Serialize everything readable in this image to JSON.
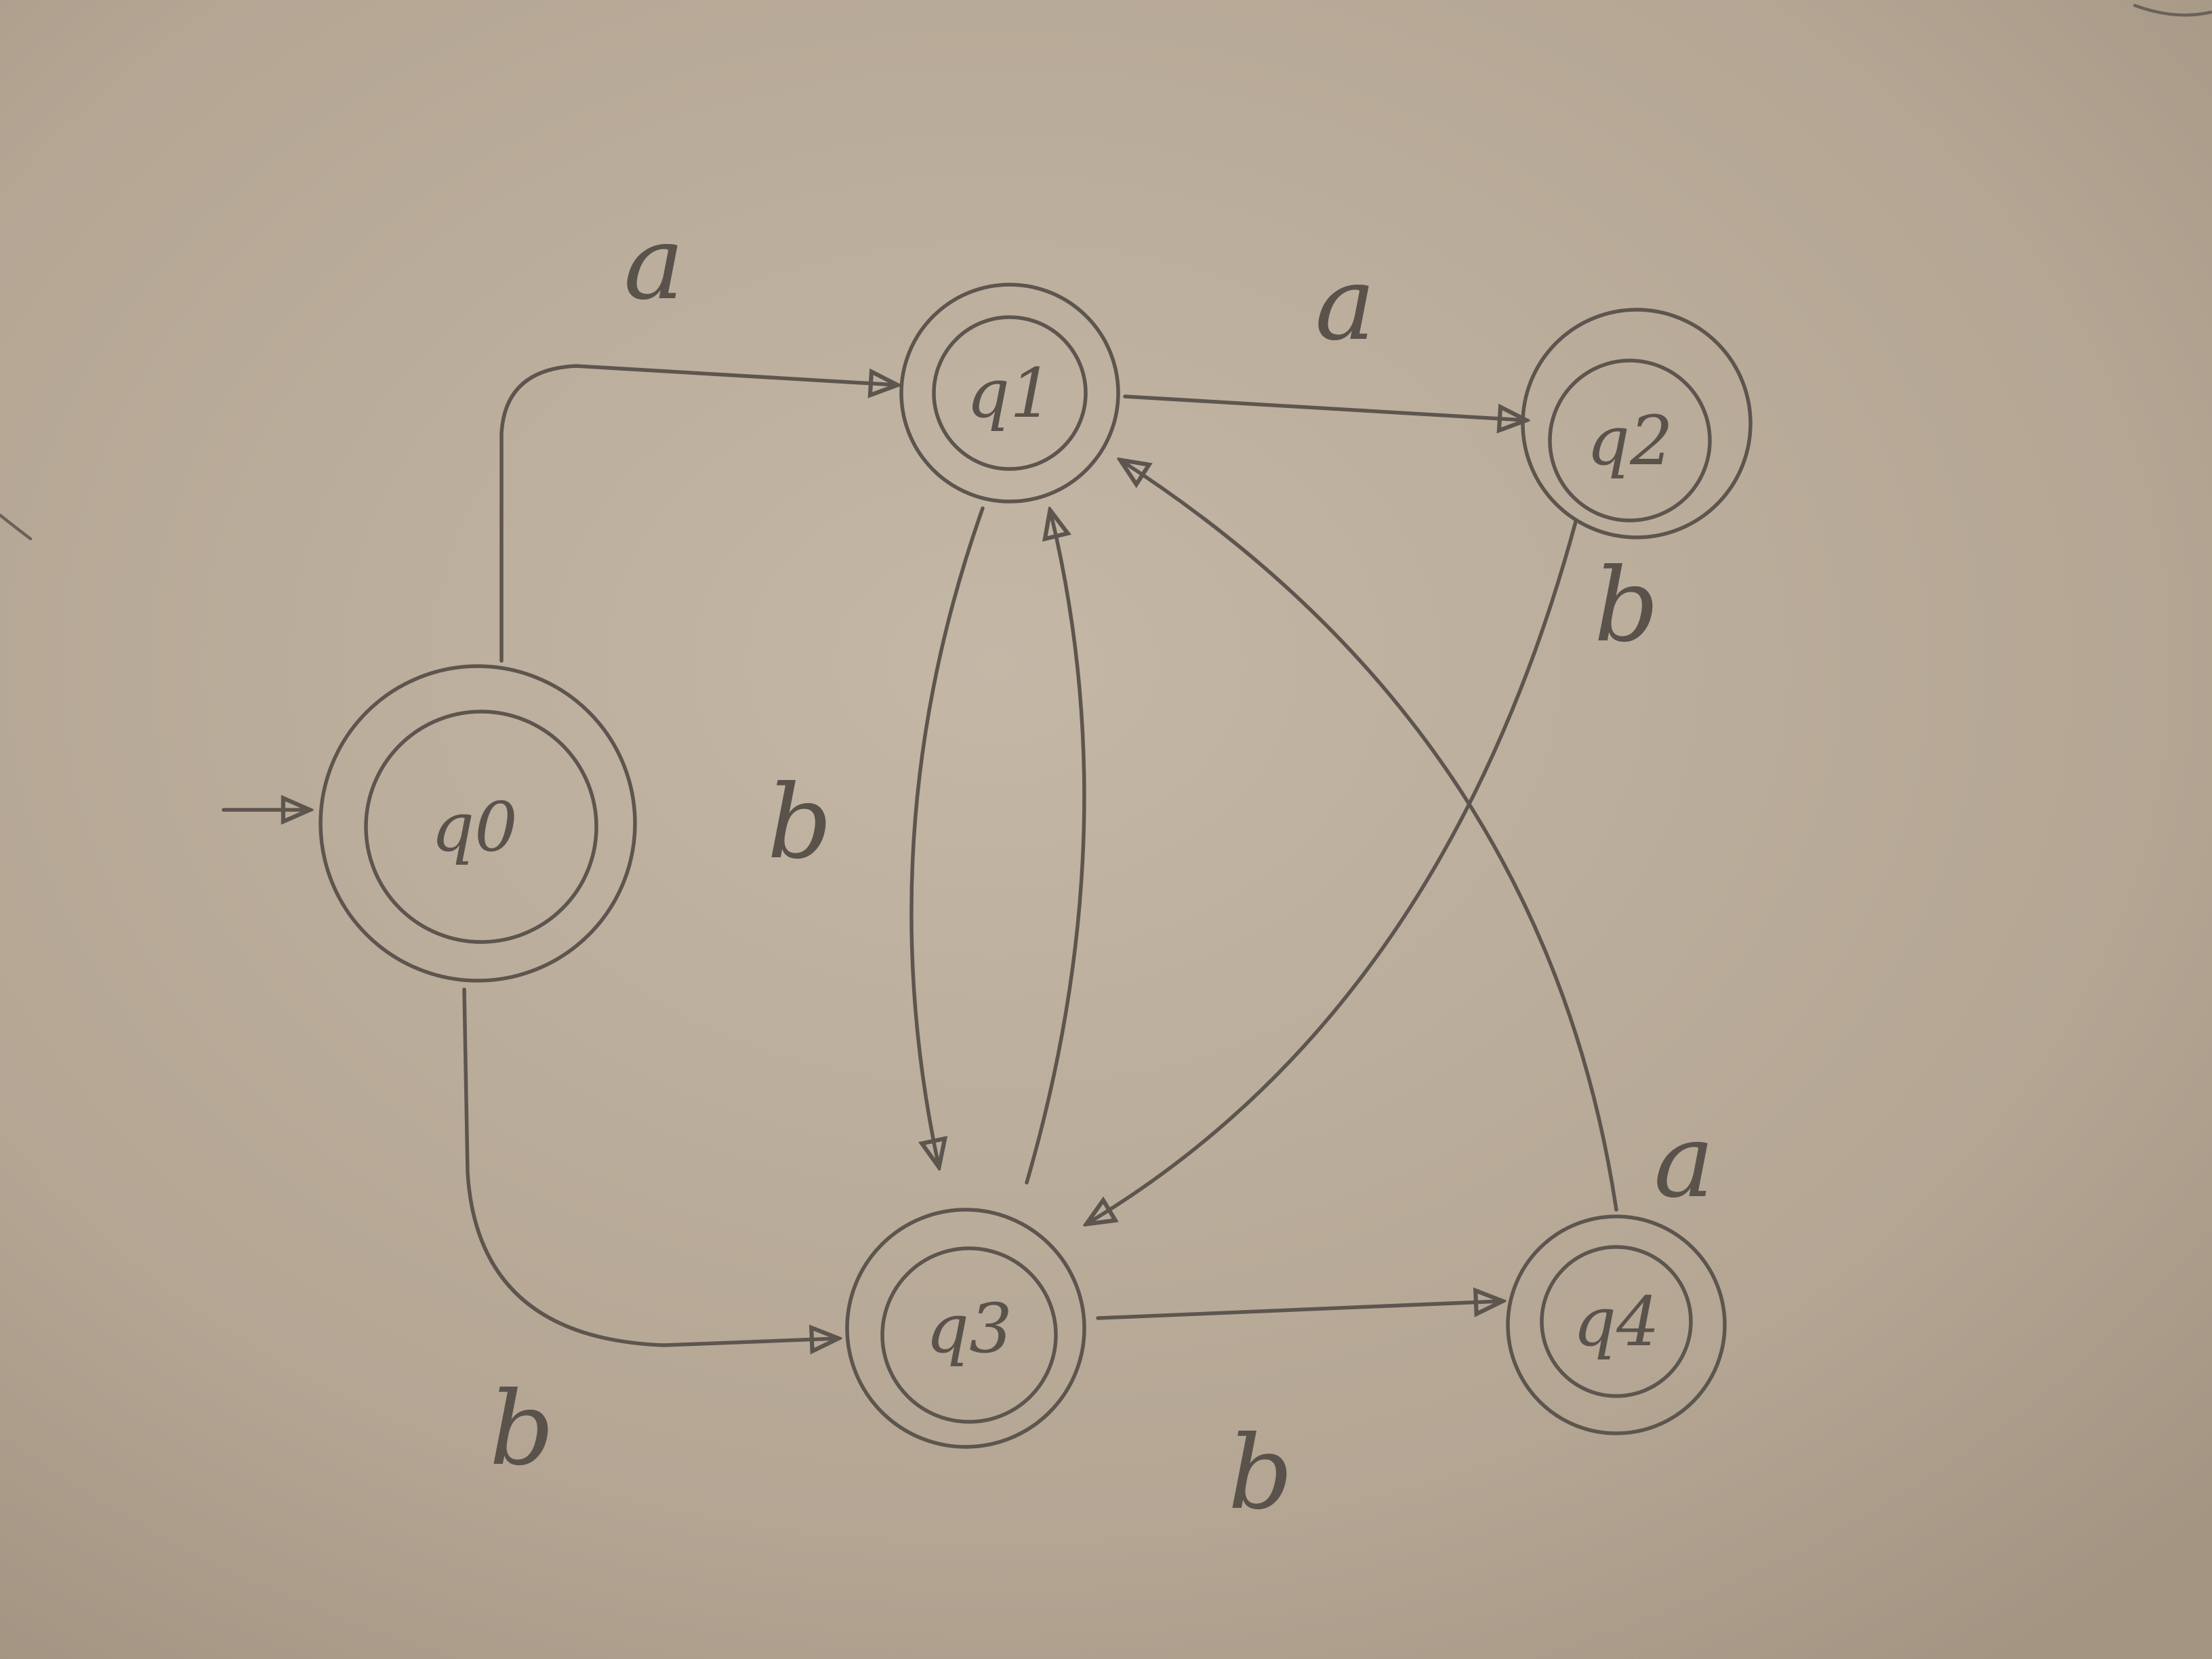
{
  "diagram": {
    "type": "finite-automaton",
    "start_state": "q0",
    "states": [
      {
        "id": "q0",
        "label": "q0",
        "accepting": true
      },
      {
        "id": "q1",
        "label": "q1",
        "accepting": true
      },
      {
        "id": "q2",
        "label": "q2",
        "accepting": true
      },
      {
        "id": "q3",
        "label": "q3",
        "accepting": true
      },
      {
        "id": "q4",
        "label": "q4",
        "accepting": true
      }
    ],
    "transitions": [
      {
        "from": "q0",
        "to": "q1",
        "label": "a"
      },
      {
        "from": "q0",
        "to": "q3",
        "label": "b"
      },
      {
        "from": "q1",
        "to": "q2",
        "label": "a"
      },
      {
        "from": "q1",
        "to": "q3",
        "label": "b"
      },
      {
        "from": "q3",
        "to": "q1",
        "label": ""
      },
      {
        "from": "q2",
        "to": "q3",
        "label": "b"
      },
      {
        "from": "q3",
        "to": "q4",
        "label": "b"
      },
      {
        "from": "q4",
        "to": "q1",
        "label": "a"
      }
    ]
  },
  "colors": {
    "paper": "#b9ab9a",
    "pencil": "#5d564f"
  }
}
